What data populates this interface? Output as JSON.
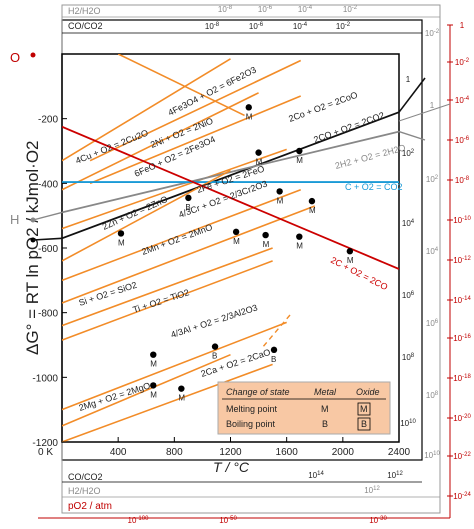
{
  "chart_data": {
    "type": "line",
    "ylabel": "ΔG° = RT ln pO2 / kJmol·O2",
    "xlabel": "T / °C",
    "xlim": [
      0,
      2400
    ],
    "ylim": [
      -1200,
      0
    ],
    "x_ticks": [
      "400",
      "800",
      "1200",
      "1600",
      "2000",
      "2400"
    ],
    "y_ticks": [
      "-200",
      "-400",
      "-600",
      "-800",
      "-1000",
      "-1200"
    ],
    "zero_K_label": "0 K",
    "O_label": "O",
    "H_label": "H",
    "series": [
      {
        "name": "4Fe3O4 + O2 = 6Fe2O3",
        "x": [
          400,
          1300
        ],
        "y": [
          0,
          -190
        ],
        "color": "#f28c28"
      },
      {
        "name": "2Ni + O2 = 2NiO",
        "x": [
          200,
          1700
        ],
        "y": [
          -330,
          -20
        ],
        "color": "#f28c28"
      },
      {
        "name": "4Cu + O2 = 2Cu2O",
        "x": [
          0,
          1200
        ],
        "y": [
          -330,
          -15
        ],
        "color": "#f28c28"
      },
      {
        "name": "2Co + O2 = 2CoO",
        "x": [
          200,
          1700
        ],
        "y": [
          -400,
          -130
        ],
        "color": "#f28c28"
      },
      {
        "name": "2CO + O2 = 2CO2",
        "x": [
          0,
          2400
        ],
        "y": [
          -570,
          -180
        ],
        "color": "#111111"
      },
      {
        "name": "6FeO + O2 = 2Fe3O4",
        "x": [
          0,
          1400
        ],
        "y": [
          -420,
          -120
        ],
        "color": "#f28c28"
      },
      {
        "name": "2Fe + O2 = 2FeO",
        "x": [
          0,
          1600
        ],
        "y": [
          -540,
          -295
        ],
        "color": "#f28c28"
      },
      {
        "name": "2H2 + O2 = 2H2O",
        "x": [
          0,
          2400
        ],
        "y": [
          -490,
          -240
        ],
        "color": "#888888"
      },
      {
        "name": "C + O2 = CO2",
        "x": [
          0,
          2400
        ],
        "y": [
          -396,
          -396
        ],
        "color": "#1a9ad6"
      },
      {
        "name": "4/3Cr + O2 = 2/3Cr2O3",
        "x": [
          0,
          1700
        ],
        "y": [
          -700,
          -420
        ],
        "color": "#f28c28"
      },
      {
        "name": "2Zn + O2 = 2ZnO",
        "x": [
          0,
          1200
        ],
        "y": [
          -640,
          -360
        ],
        "color": "#f28c28"
      },
      {
        "name": "2Mn + O2 = 2MnO",
        "x": [
          0,
          1800
        ],
        "y": [
          -770,
          -470
        ],
        "color": "#f28c28"
      },
      {
        "name": "2C + O2 = 2CO",
        "x": [
          0,
          2400
        ],
        "y": [
          -225,
          -665
        ],
        "color": "#cc0000"
      },
      {
        "name": "Si + O2 = SiO2",
        "x": [
          0,
          1500
        ],
        "y": [
          -840,
          -600
        ],
        "color": "#f28c28"
      },
      {
        "name": "Ti + O2 = TiO2",
        "x": [
          0,
          1500
        ],
        "y": [
          -885,
          -640
        ],
        "color": "#f28c28"
      },
      {
        "name": "4/3Al + O2 = 2/3Al2O3",
        "x": [
          0,
          1600
        ],
        "y": [
          -1100,
          -830
        ],
        "color": "#f28c28"
      },
      {
        "name": "2Ca + O2 = 2CaO",
        "x": [
          0,
          1500
        ],
        "y": [
          -1200,
          -960
        ],
        "color": "#f28c28"
      },
      {
        "name": "2Mg + O2 = 2MgO",
        "x": [
          0,
          1200
        ],
        "y": [
          -1150,
          -930
        ],
        "color": "#f28c28"
      }
    ],
    "markers": [
      {
        "x": 1330,
        "y": -165,
        "label": "M"
      },
      {
        "x": 1400,
        "y": -305,
        "label": "M"
      },
      {
        "x": 1690,
        "y": -300,
        "label": "M"
      },
      {
        "x": 1550,
        "y": -425,
        "label": "M"
      },
      {
        "x": 1780,
        "y": -455,
        "label": "M"
      },
      {
        "x": 900,
        "y": -445,
        "label": "B"
      },
      {
        "x": 420,
        "y": -555,
        "label": "M"
      },
      {
        "x": 1240,
        "y": -550,
        "label": "M"
      },
      {
        "x": 1450,
        "y": -560,
        "label": "M"
      },
      {
        "x": 1690,
        "y": -565,
        "label": "M"
      },
      {
        "x": 2050,
        "y": -610,
        "label": "M"
      },
      {
        "x": 650,
        "y": -930,
        "label": "M"
      },
      {
        "x": 1090,
        "y": -905,
        "label": "B"
      },
      {
        "x": 1510,
        "y": -915,
        "label": "B"
      },
      {
        "x": 650,
        "y": -1025,
        "label": "M"
      },
      {
        "x": 850,
        "y": -1035,
        "label": "M"
      }
    ],
    "legend_box": {
      "headers": [
        "Change of state",
        "Metal",
        "Oxide"
      ],
      "rows": [
        [
          "Melting point",
          "M",
          "M"
        ],
        [
          "Boiling point",
          "B",
          "B"
        ]
      ]
    },
    "top_scales": {
      "h2_h2o": "H2/H2O",
      "co_co2": "CO/CO2",
      "h2_ticks": [
        "10^-8",
        "10^-6",
        "10^-4",
        "10^-2"
      ],
      "co_ticks": [
        "10^-8",
        "10^-6",
        "10^-4",
        "10^-2"
      ]
    },
    "bottom_scales": {
      "co_co2": "CO/CO2",
      "h2_h2o": "H2/H2O",
      "po2_label": "pO2 / atm",
      "co_ticks": [
        "10^14",
        "10^12"
      ],
      "h2_ticks": [
        "10^12"
      ],
      "po2_ticks": [
        "10^-100",
        "10^-50",
        "10^-30"
      ]
    },
    "right_scales": {
      "co_ticks_black": [
        "1",
        "10^2",
        "10^4",
        "10^6",
        "10^8",
        "10^10"
      ],
      "h2_ticks_gray": [
        "10^-2",
        "1",
        "10^2",
        "10^4",
        "10^6",
        "10^8",
        "10^10"
      ],
      "po2_ticks_red": [
        "1",
        "10^-2",
        "10^-4",
        "10^-6",
        "10^-8",
        "10^-10",
        "10^-12",
        "10^-14",
        "10^-16",
        "10^-18",
        "10^-20",
        "10^-22",
        "10^-24"
      ]
    }
  }
}
